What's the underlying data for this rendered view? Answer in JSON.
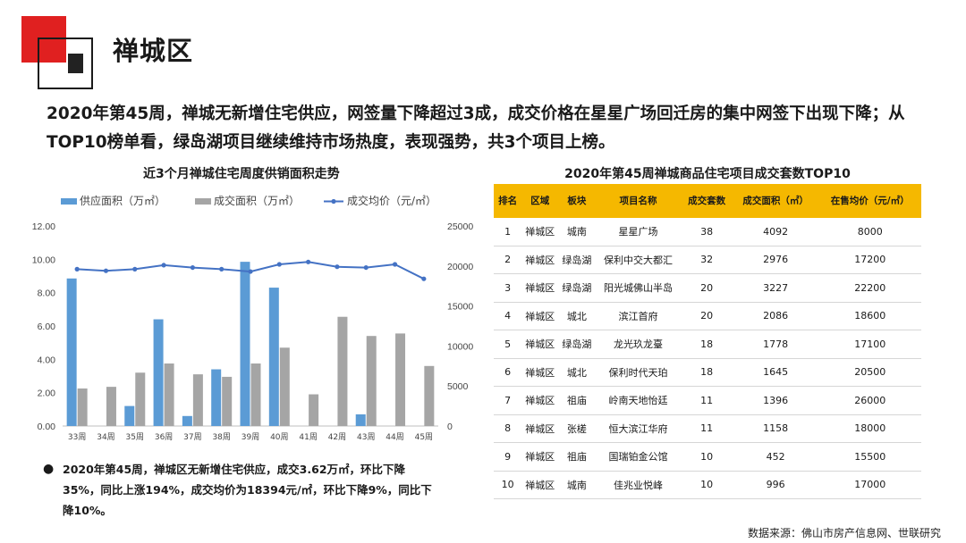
{
  "header": {
    "title": "禅城区"
  },
  "summary": "2020年第45周，禅城无新增住宅供应，网签量下降超过3成，成交价格在星星广场回迁房的集中网签下出现下降；从TOP10榜单看，绿岛湖项目继续维持市场热度，表现强势，共3个项目上榜。",
  "chart_title": "近3个月禅城住宅周度供销面积走势",
  "colors": {
    "supply": "#5b9bd5",
    "deal": "#a5a5a5",
    "price": "#4472c4",
    "table_header": "#f5b800"
  },
  "chart_data": {
    "type": "bar",
    "categories": [
      "33周",
      "34周",
      "35周",
      "36周",
      "37周",
      "38周",
      "39周",
      "40周",
      "41周",
      "42周",
      "43周",
      "44周",
      "45周"
    ],
    "series": [
      {
        "name": "供应面积（万㎡）",
        "type": "bar",
        "axis": "left",
        "values": [
          8.85,
          0,
          1.2,
          6.4,
          0.6,
          3.4,
          9.85,
          8.3,
          0,
          0,
          0.7,
          0,
          0
        ]
      },
      {
        "name": "成交面积（万㎡）",
        "type": "bar",
        "axis": "left",
        "values": [
          2.25,
          2.35,
          3.2,
          3.75,
          3.1,
          2.95,
          3.75,
          4.7,
          1.9,
          6.55,
          5.4,
          5.55,
          3.6
        ]
      },
      {
        "name": "成交均价（元/㎡）",
        "type": "line",
        "axis": "right",
        "values": [
          19600,
          19400,
          19600,
          20100,
          19800,
          19600,
          19300,
          20200,
          20500,
          19900,
          19800,
          20200,
          18394
        ]
      }
    ],
    "y_left": {
      "range": [
        0,
        12
      ],
      "ticks": [
        "0.00",
        "2.00",
        "4.00",
        "6.00",
        "8.00",
        "10.00",
        "12.00"
      ]
    },
    "y_right": {
      "range": [
        0,
        25000
      ],
      "ticks": [
        "0",
        "5000",
        "10000",
        "15000",
        "20000",
        "25000"
      ]
    },
    "legend_position": "top",
    "grid": true
  },
  "table": {
    "title": "2020年第45周禅城商品住宅项目成交套数TOP10",
    "headers": [
      "排名",
      "区域",
      "板块",
      "项目名称",
      "成交套数",
      "成交面积（㎡）",
      "在售均价（元/㎡）"
    ],
    "rows": [
      [
        "1",
        "禅城区",
        "城南",
        "星星广场",
        "38",
        "4092",
        "8000"
      ],
      [
        "2",
        "禅城区",
        "绿岛湖",
        "保利中交大都汇",
        "32",
        "2976",
        "17200"
      ],
      [
        "3",
        "禅城区",
        "绿岛湖",
        "阳光城佛山半岛",
        "20",
        "3227",
        "22200"
      ],
      [
        "4",
        "禅城区",
        "城北",
        "滨江首府",
        "20",
        "2086",
        "18600"
      ],
      [
        "5",
        "禅城区",
        "绿岛湖",
        "龙光玖龙臺",
        "18",
        "1778",
        "17100"
      ],
      [
        "6",
        "禅城区",
        "城北",
        "保利时代天珀",
        "18",
        "1645",
        "20500"
      ],
      [
        "7",
        "禅城区",
        "祖庙",
        "岭南天地怡廷",
        "11",
        "1396",
        "26000"
      ],
      [
        "8",
        "禅城区",
        "张槎",
        "恒大滨江华府",
        "11",
        "1158",
        "18000"
      ],
      [
        "9",
        "禅城区",
        "祖庙",
        "国瑞铂金公馆",
        "10",
        "452",
        "15500"
      ],
      [
        "10",
        "禅城区",
        "城南",
        "佳兆业悦峰",
        "10",
        "996",
        "17000"
      ]
    ]
  },
  "bullet_text": "2020年第45周，禅城区无新增住宅供应，成交3.62万㎡，环比下降35%，同比上涨194%，成交均价为18394元/㎡，环比下降9%，同比下降10%。",
  "source": "数据来源：佛山市房产信息网、世联研究"
}
